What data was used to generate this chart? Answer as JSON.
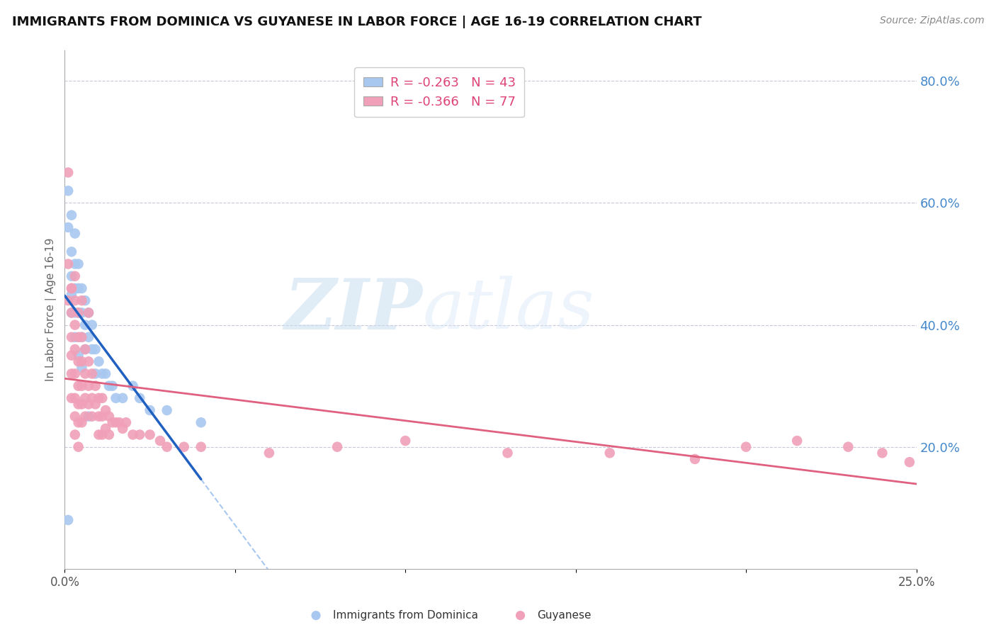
{
  "title": "IMMIGRANTS FROM DOMINICA VS GUYANESE IN LABOR FORCE | AGE 16-19 CORRELATION CHART",
  "source": "Source: ZipAtlas.com",
  "ylabel": "In Labor Force | Age 16-19",
  "xlim": [
    0.0,
    0.25
  ],
  "ylim": [
    0.0,
    0.85
  ],
  "R_dominica": -0.263,
  "N_dominica": 43,
  "R_guyanese": -0.366,
  "N_guyanese": 77,
  "color_dominica": "#a8c8f0",
  "color_guyanese": "#f0a0b8",
  "line_color_dominica": "#2060c0",
  "line_color_guyanese": "#e06080",
  "line_color_dominica_ext": "#a8c8f0",
  "watermark_zip": "ZIP",
  "watermark_atlas": "atlas",
  "background_color": "#ffffff",
  "grid_color": "#c8c8d8",
  "right_axis_color": "#4488cc",
  "legend_dominica": "Immigrants from Dominica",
  "legend_guyanese": "Guyanese",
  "dominica_x": [
    0.001,
    0.001,
    0.001,
    0.002,
    0.002,
    0.002,
    0.002,
    0.002,
    0.003,
    0.003,
    0.003,
    0.003,
    0.003,
    0.004,
    0.004,
    0.004,
    0.004,
    0.005,
    0.005,
    0.005,
    0.005,
    0.006,
    0.006,
    0.006,
    0.007,
    0.007,
    0.008,
    0.008,
    0.009,
    0.009,
    0.01,
    0.011,
    0.012,
    0.013,
    0.014,
    0.015,
    0.017,
    0.02,
    0.022,
    0.025,
    0.03,
    0.04,
    0.007
  ],
  "dominica_y": [
    0.08,
    0.56,
    0.62,
    0.58,
    0.52,
    0.48,
    0.45,
    0.42,
    0.55,
    0.5,
    0.46,
    0.42,
    0.38,
    0.5,
    0.46,
    0.42,
    0.35,
    0.46,
    0.42,
    0.38,
    0.33,
    0.44,
    0.4,
    0.36,
    0.42,
    0.38,
    0.4,
    0.36,
    0.36,
    0.32,
    0.34,
    0.32,
    0.32,
    0.3,
    0.3,
    0.28,
    0.28,
    0.3,
    0.28,
    0.26,
    0.26,
    0.24,
    0.25
  ],
  "guyanese_x": [
    0.001,
    0.001,
    0.001,
    0.002,
    0.002,
    0.002,
    0.002,
    0.002,
    0.002,
    0.003,
    0.003,
    0.003,
    0.003,
    0.003,
    0.003,
    0.003,
    0.004,
    0.004,
    0.004,
    0.004,
    0.004,
    0.004,
    0.004,
    0.005,
    0.005,
    0.005,
    0.005,
    0.005,
    0.006,
    0.006,
    0.006,
    0.006,
    0.007,
    0.007,
    0.007,
    0.008,
    0.008,
    0.008,
    0.009,
    0.009,
    0.01,
    0.01,
    0.01,
    0.011,
    0.011,
    0.011,
    0.012,
    0.012,
    0.013,
    0.013,
    0.014,
    0.015,
    0.016,
    0.017,
    0.018,
    0.02,
    0.022,
    0.025,
    0.028,
    0.03,
    0.035,
    0.04,
    0.06,
    0.08,
    0.1,
    0.13,
    0.16,
    0.185,
    0.2,
    0.215,
    0.23,
    0.24,
    0.248,
    0.002,
    0.003,
    0.005,
    0.007
  ],
  "guyanese_y": [
    0.65,
    0.5,
    0.44,
    0.46,
    0.42,
    0.38,
    0.35,
    0.32,
    0.28,
    0.44,
    0.4,
    0.36,
    0.32,
    0.28,
    0.25,
    0.22,
    0.42,
    0.38,
    0.34,
    0.3,
    0.27,
    0.24,
    0.2,
    0.38,
    0.34,
    0.3,
    0.27,
    0.24,
    0.36,
    0.32,
    0.28,
    0.25,
    0.34,
    0.3,
    0.27,
    0.32,
    0.28,
    0.25,
    0.3,
    0.27,
    0.28,
    0.25,
    0.22,
    0.28,
    0.25,
    0.22,
    0.26,
    0.23,
    0.25,
    0.22,
    0.24,
    0.24,
    0.24,
    0.23,
    0.24,
    0.22,
    0.22,
    0.22,
    0.21,
    0.2,
    0.2,
    0.2,
    0.19,
    0.2,
    0.21,
    0.19,
    0.19,
    0.18,
    0.2,
    0.21,
    0.2,
    0.19,
    0.175,
    0.46,
    0.48,
    0.44,
    0.42
  ]
}
